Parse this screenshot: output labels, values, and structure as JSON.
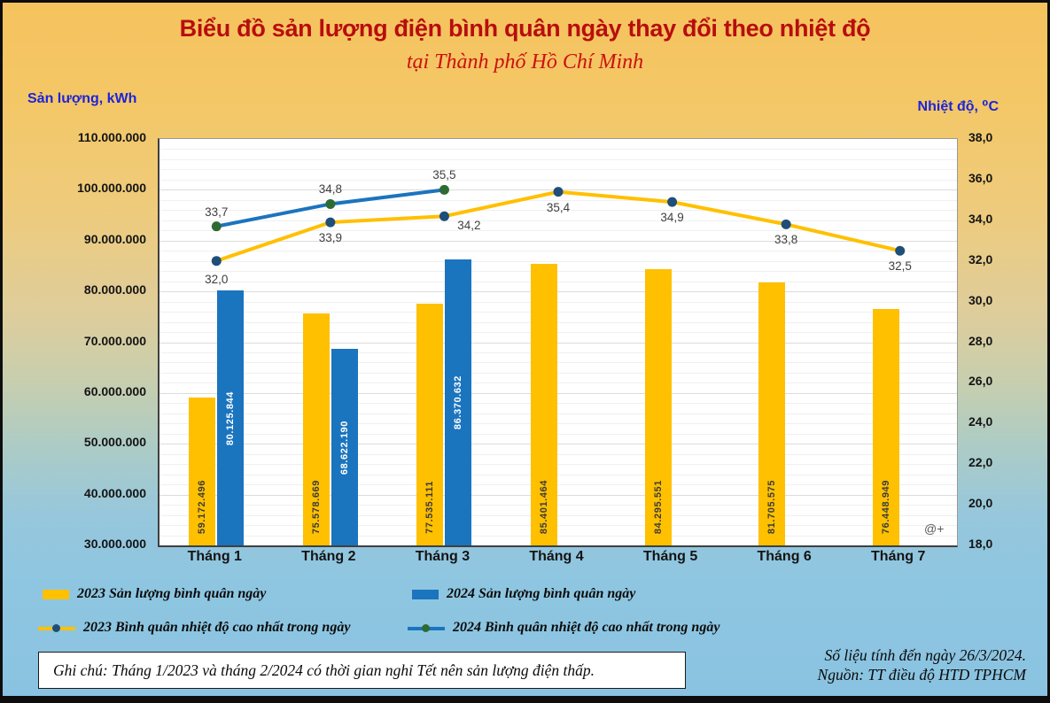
{
  "header": {
    "title": "Biểu đồ sản lượng điện bình quân ngày thay đổi theo nhiệt độ",
    "subtitle": "tại Thành phố Hồ Chí Minh"
  },
  "axes": {
    "left_title": "Sản lượng, kWh",
    "right_title": "Nhiệt độ, ⁰C",
    "left_ticks": [
      "110.000.000",
      "100.000.000",
      "90.000.000",
      "80.000.000",
      "70.000.000",
      "60.000.000",
      "50.000.000",
      "40.000.000",
      "30.000.000"
    ],
    "right_ticks": [
      "38,0",
      "36,0",
      "34,0",
      "32,0",
      "30,0",
      "28,0",
      "26,0",
      "24,0",
      "22,0",
      "20,0",
      "18,0"
    ]
  },
  "chart_data": {
    "type": "combo-bar-line",
    "categories": [
      "Tháng 1",
      "Tháng 2",
      "Tháng 3",
      "Tháng 4",
      "Tháng 5",
      "Tháng 6",
      "Tháng 7"
    ],
    "left_axis": {
      "min": 30000000,
      "max": 110000000,
      "major": 10000000,
      "minor": 2000000
    },
    "right_axis": {
      "min": 18.0,
      "max": 38.0,
      "major": 2.0
    },
    "bar_series": [
      {
        "name": "2023 Sản lượng bình quân ngày",
        "color": "#FFC000",
        "label_color": "#3b3b3b",
        "values": [
          59172496,
          75578669,
          77535111,
          85401464,
          84295551,
          81705575,
          76448949
        ],
        "labels": [
          "59.172.496",
          "75.578.669",
          "77.535.111",
          "85.401.464",
          "84.295.551",
          "81.705.575",
          "76.448.949"
        ]
      },
      {
        "name": "2024 Sản lượng bình quân ngày",
        "color": "#1B74BE",
        "label_color": "#ffffff",
        "values": [
          80125844,
          68622190,
          86370632,
          null,
          null,
          null,
          null
        ],
        "labels": [
          "80.125.844",
          "68.622.190",
          "86.370.632",
          null,
          null,
          null,
          null
        ]
      }
    ],
    "line_series": [
      {
        "name": "2023 Bình quân nhiệt độ cao nhất trong ngày",
        "color": "#FFC000",
        "marker_color": "#1F4E79",
        "values": [
          32.0,
          33.9,
          34.2,
          35.4,
          34.9,
          33.8,
          32.5
        ],
        "labels": [
          "32,0",
          "33,9",
          "34,2",
          "35,4",
          "34,9",
          "33,8",
          "32,5"
        ],
        "label_position": "below"
      },
      {
        "name": "2024 Bình quân nhiệt độ cao nhất trong ngày",
        "color": "#1B74BE",
        "marker_color": "#2E6B33",
        "values": [
          33.7,
          34.8,
          35.5,
          null,
          null,
          null,
          null
        ],
        "labels": [
          "33,7",
          "34,8",
          "35,5",
          null,
          null,
          null,
          null
        ],
        "label_position": "above"
      }
    ],
    "grid": "minor-and-major-horizontal",
    "legend_position": "bottom-two-columns"
  },
  "watermark": "@+",
  "note": {
    "text": "Ghi chú: Tháng 1/2023 và tháng 2/2024 có thời gian nghỉ Tết nên sản lượng điện thấp."
  },
  "source": {
    "line1": "Số liệu tính đến ngày 26/3/2024.",
    "line2": "Nguồn: TT điều độ HTD TPHCM"
  },
  "colors": {
    "title": "#B80D0D",
    "subtitle": "#CC1111",
    "axis_title": "#1D24D9",
    "bar_2023": "#FFC000",
    "bar_2024": "#1B74BE",
    "marker_2023": "#1F4E79",
    "marker_2024": "#2E6B33",
    "background_top": "#F5C35E",
    "background_bottom": "#8AC3E1"
  }
}
